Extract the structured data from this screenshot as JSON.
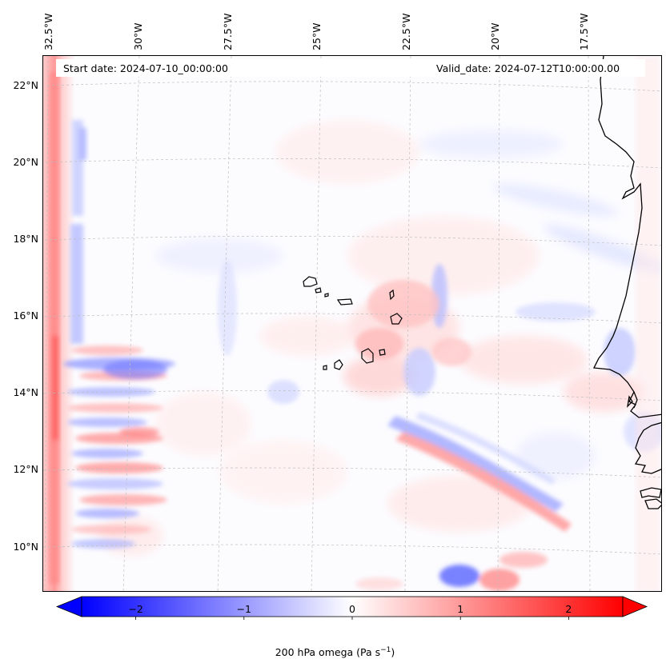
{
  "map": {
    "start_date_text": "Start date: 2024-07-10_00:00:00",
    "valid_date_text": "Valid_date: 2024-07-12T10:00:00.00",
    "latitude_labels": [
      "22°N",
      "20°N",
      "18°N",
      "16°N",
      "14°N",
      "12°N",
      "10°N"
    ],
    "longitude_labels": [
      "32.5°W",
      "30°W",
      "27.5°W",
      "25°W",
      "22.5°W",
      "20°W",
      "17.5°W"
    ],
    "coastline_color": "#000000",
    "gridline_color": "#bfbfbf"
  },
  "colorbar": {
    "ticks": [
      {
        "value": -2,
        "label": "−2"
      },
      {
        "value": -1,
        "label": "−1"
      },
      {
        "value": 0,
        "label": "0"
      },
      {
        "value": 1,
        "label": "1"
      },
      {
        "value": 2,
        "label": "2"
      }
    ],
    "range": [
      -2.5,
      2.5
    ],
    "colormap": "bwr",
    "min_color": "#0000ff",
    "mid_color": "#ffffff",
    "max_color": "#ff0000",
    "extend": "both",
    "label_prefix": "200 hPa omega (Pa s",
    "label_exponent": "−1",
    "label_suffix": ")"
  }
}
